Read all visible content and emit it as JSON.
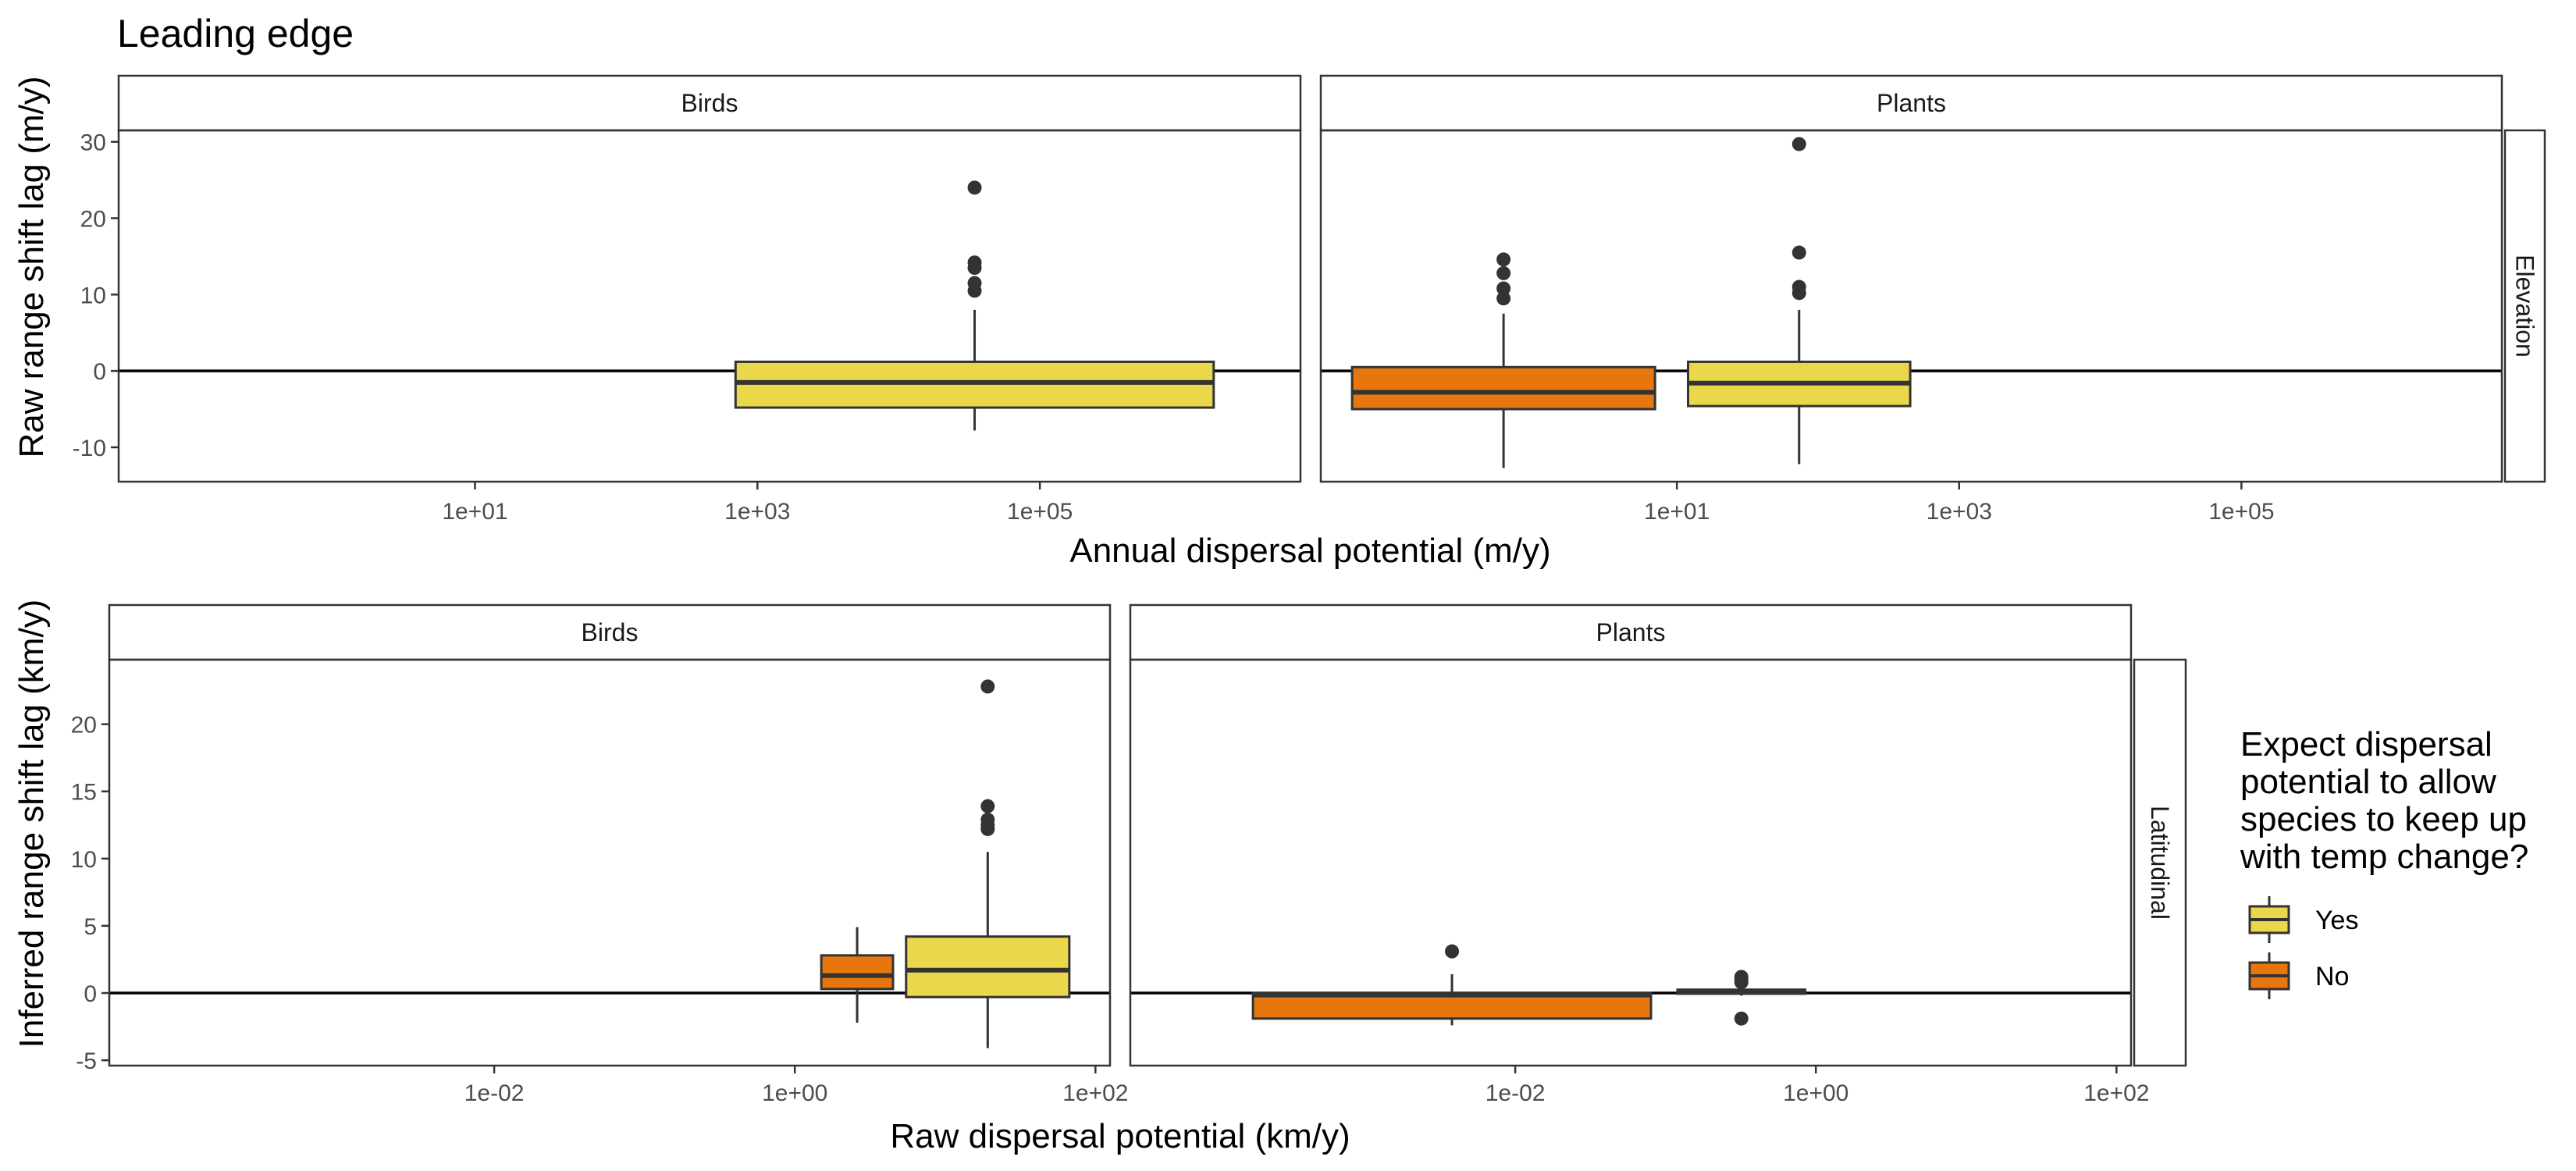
{
  "title": "Leading edge",
  "legend": {
    "title_lines": [
      "Expect dispersal",
      "potential to allow",
      "species to keep up",
      "with temp change?"
    ],
    "entries": [
      {
        "label": "Yes",
        "color": "#EBD84A"
      },
      {
        "label": "No",
        "color": "#E8760E"
      }
    ]
  },
  "colors": {
    "Yes": "#EBD84A",
    "No": "#E8760E",
    "box_line": "#333333",
    "zero_line": "#000000",
    "panel_border": "#333333"
  },
  "chart_data": [
    {
      "type": "box",
      "row_strip": "Elevation",
      "xlabel": "Annual dispersal potential (m/y)",
      "ylabel": "Raw range shift lag (m/y)",
      "x_scale": "log10",
      "xlim": [
        0.03,
        7000000
      ],
      "ylim": [
        -14.5,
        31.5
      ],
      "x_ticks": [
        {
          "v": 10,
          "label": "1e+01"
        },
        {
          "v": 1000,
          "label": "1e+03"
        },
        {
          "v": 100000,
          "label": "1e+05"
        }
      ],
      "y_ticks": [
        {
          "v": -10,
          "label": "-10"
        },
        {
          "v": 0,
          "label": "0"
        },
        {
          "v": 10,
          "label": "10"
        },
        {
          "v": 20,
          "label": "20"
        },
        {
          "v": 30,
          "label": "30"
        }
      ],
      "zero_line": 0,
      "panels": [
        {
          "name": "Birds",
          "boxes": [
            {
              "group": "Yes",
              "x_left": 700,
              "x_right": 1700000,
              "q1": -4.8,
              "median": -1.5,
              "q3": 1.2,
              "whisker_low": -7.8,
              "whisker_high": 8.0,
              "outliers": [
                10.5,
                11.5,
                13.5,
                14.2,
                24.0
              ]
            }
          ]
        },
        {
          "name": "Plants",
          "boxes": [
            {
              "group": "No",
              "x_left": 0.05,
              "x_right": 7,
              "q1": -5.0,
              "median": -2.8,
              "q3": 0.5,
              "whisker_low": -12.7,
              "whisker_high": 7.5,
              "outliers": [
                9.5,
                10.8,
                12.8,
                14.6
              ]
            },
            {
              "group": "Yes",
              "x_left": 12,
              "x_right": 450,
              "q1": -4.6,
              "median": -1.6,
              "q3": 1.2,
              "whisker_low": -12.2,
              "whisker_high": 8.0,
              "outliers": [
                10.2,
                11.0,
                15.5,
                29.7
              ]
            }
          ]
        }
      ]
    },
    {
      "type": "box",
      "row_strip": "Latitudinal",
      "xlabel": "Raw dispersal potential (km/y)",
      "ylabel": "Inferred range shift lag (km/y)",
      "x_scale": "log10",
      "xlim": [
        2.75e-05,
        125
      ],
      "ylim": [
        -5.4,
        24.8
      ],
      "x_ticks": [
        {
          "v": 0.01,
          "label": "1e-02"
        },
        {
          "v": 1,
          "label": "1e+00"
        },
        {
          "v": 100,
          "label": "1e+02"
        }
      ],
      "y_ticks": [
        {
          "v": -5,
          "label": "-5"
        },
        {
          "v": 0,
          "label": "0"
        },
        {
          "v": 5,
          "label": "5"
        },
        {
          "v": 10,
          "label": "10"
        },
        {
          "v": 15,
          "label": "15"
        },
        {
          "v": 20,
          "label": "20"
        }
      ],
      "zero_line": 0,
      "panels": [
        {
          "name": "Birds",
          "boxes": [
            {
              "group": "No",
              "x_left": 1.5,
              "x_right": 4.5,
              "q1": 0.3,
              "median": 1.3,
              "q3": 2.8,
              "whisker_low": -2.2,
              "whisker_high": 4.9,
              "outliers": []
            },
            {
              "group": "Yes",
              "x_left": 5.5,
              "x_right": 67,
              "q1": -0.3,
              "median": 1.7,
              "q3": 4.2,
              "whisker_low": -4.1,
              "whisker_high": 10.5,
              "outliers": [
                12.2,
                12.5,
                12.9,
                13.9,
                22.8
              ]
            }
          ]
        },
        {
          "name": "Plants",
          "boxes": [
            {
              "group": "No",
              "x_left": 0.00018,
              "x_right": 0.08,
              "q1": -1.9,
              "median": -0.15,
              "q3": 0.0,
              "whisker_low": -2.4,
              "whisker_high": 1.4,
              "outliers": [
                3.1
              ]
            },
            {
              "group": "Yes",
              "x_left": 0.12,
              "x_right": 0.85,
              "q1": -0.05,
              "median": 0.1,
              "q3": 0.25,
              "whisker_low": -0.2,
              "whisker_high": 0.5,
              "outliers": [
                -1.9,
                0.8,
                1.0,
                1.2
              ]
            }
          ]
        }
      ]
    }
  ]
}
